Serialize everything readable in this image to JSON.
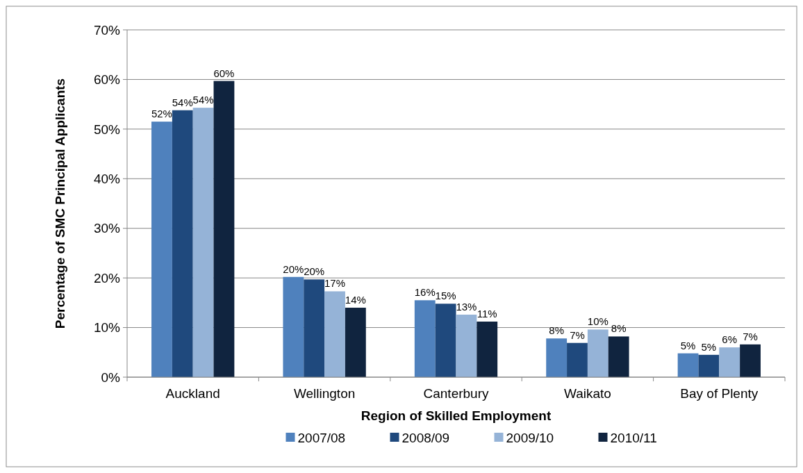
{
  "chart_data": {
    "type": "bar",
    "xlabel": "Region of Skilled Employment",
    "ylabel": "Percentage of SMC Principal Applicants",
    "categories": [
      "Auckland",
      "Wellington",
      "Canterbury",
      "Waikato",
      "Bay of Plenty"
    ],
    "series": [
      {
        "name": "2007/08",
        "color": "#4f81bd",
        "values": [
          51.5,
          20.2,
          15.5,
          7.8,
          4.8
        ],
        "value_labels": [
          "52%",
          "20%",
          "16%",
          "8%",
          "5%"
        ]
      },
      {
        "name": "2008/09",
        "color": "#1f497d",
        "values": [
          53.8,
          19.7,
          14.8,
          6.9,
          4.5
        ],
        "value_labels": [
          "54%",
          "20%",
          "15%",
          "7%",
          "5%"
        ]
      },
      {
        "name": "2009/10",
        "color": "#95b3d7",
        "values": [
          54.3,
          17.3,
          12.6,
          9.6,
          6.0
        ],
        "value_labels": [
          "54%",
          "17%",
          "13%",
          "10%",
          "6%"
        ]
      },
      {
        "name": "2010/11",
        "color": "#10243f",
        "values": [
          59.7,
          14.0,
          11.2,
          8.2,
          6.6
        ],
        "value_labels": [
          "60%",
          "14%",
          "11%",
          "8%",
          "7%"
        ]
      }
    ],
    "ylim": [
      0,
      70
    ],
    "yticks": [
      {
        "value": 0,
        "label": "0%"
      },
      {
        "value": 10,
        "label": "10%"
      },
      {
        "value": 20,
        "label": "20%"
      },
      {
        "value": 30,
        "label": "30%"
      },
      {
        "value": 40,
        "label": "40%"
      },
      {
        "value": 50,
        "label": "50%"
      },
      {
        "value": 60,
        "label": "60%"
      },
      {
        "value": 70,
        "label": "70%"
      }
    ],
    "grid": "y",
    "legend": "bottom"
  }
}
